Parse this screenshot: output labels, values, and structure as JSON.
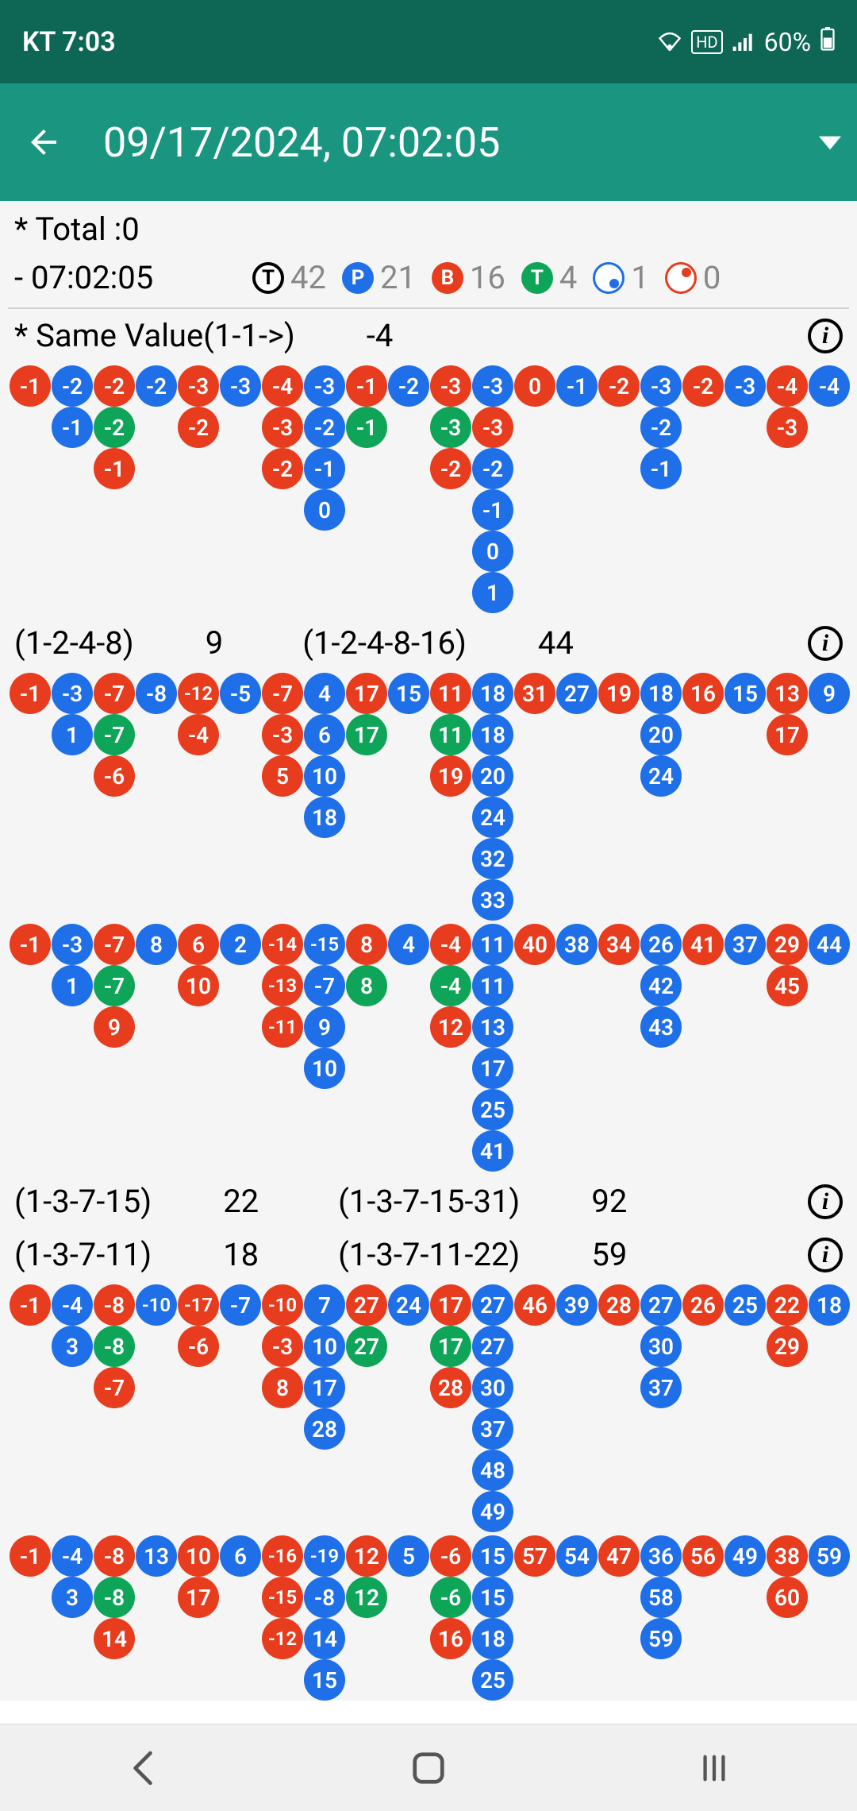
{
  "status_bar": {
    "carrier": "KT",
    "time": "7:03",
    "battery": "60%"
  },
  "app_bar": {
    "title": "09/17/2024, 07:02:05"
  },
  "total": {
    "label": "* Total : ",
    "value": "0"
  },
  "stats": {
    "time": " - 07:02:05",
    "T": "42",
    "P": "21",
    "B": "16",
    "Tg": "4",
    "ring_b": "1",
    "ring_r": "0"
  },
  "colors": {
    "red": "#e83c1e",
    "blue": "#1e6fe8",
    "green": "#0fa558",
    "teal": "#1a9680",
    "teal_dark": "#0e6655"
  },
  "sections": [
    {
      "id": "s1",
      "header": {
        "items": [
          [
            "* Same Value(1-1->)",
            "-4"
          ]
        ],
        "info": true
      },
      "rows": [
        [
          [
            "-1",
            "r"
          ],
          [
            "-2",
            "b"
          ],
          [
            "-2",
            "r"
          ],
          [
            "-2",
            "b"
          ],
          [
            "-3",
            "r"
          ],
          [
            "-3",
            "b"
          ],
          [
            "-4",
            "r"
          ],
          [
            "-3",
            "b"
          ],
          [
            "-1",
            "r"
          ],
          [
            "-2",
            "b"
          ],
          [
            "-3",
            "r"
          ],
          [
            "-3",
            "b"
          ],
          [
            "0",
            "r"
          ],
          [
            "-1",
            "b"
          ],
          [
            "-2",
            "r"
          ],
          [
            "-3",
            "b"
          ],
          [
            "-2",
            "r"
          ],
          [
            "-3",
            "b"
          ],
          [
            "-4",
            "r"
          ],
          [
            "-4",
            "b"
          ]
        ],
        [
          null,
          [
            "-1",
            "b"
          ],
          [
            "-2",
            "g"
          ],
          null,
          [
            "-2",
            "r"
          ],
          null,
          [
            "-3",
            "r"
          ],
          [
            "-2",
            "b"
          ],
          [
            "-1",
            "g"
          ],
          null,
          [
            "-3",
            "g"
          ],
          [
            "-3",
            "r"
          ],
          null,
          null,
          null,
          [
            "-2",
            "b"
          ],
          null,
          null,
          [
            "-3",
            "r"
          ],
          null
        ],
        [
          null,
          null,
          [
            "-1",
            "r"
          ],
          null,
          null,
          null,
          [
            "-2",
            "r"
          ],
          [
            "-1",
            "b"
          ],
          null,
          null,
          [
            "-2",
            "r"
          ],
          [
            "-2",
            "b"
          ],
          null,
          null,
          null,
          [
            "-1",
            "b"
          ],
          null,
          null,
          null,
          null
        ],
        [
          null,
          null,
          null,
          null,
          null,
          null,
          null,
          [
            "0",
            "b"
          ],
          null,
          null,
          null,
          [
            "-1",
            "b"
          ],
          null,
          null,
          null,
          null,
          null,
          null,
          null,
          null
        ],
        [
          null,
          null,
          null,
          null,
          null,
          null,
          null,
          null,
          null,
          null,
          null,
          [
            "0",
            "b"
          ],
          null,
          null,
          null,
          null,
          null,
          null,
          null,
          null
        ],
        [
          null,
          null,
          null,
          null,
          null,
          null,
          null,
          null,
          null,
          null,
          null,
          [
            "1",
            "b"
          ],
          null,
          null,
          null,
          null,
          null,
          null,
          null,
          null
        ]
      ]
    },
    {
      "id": "s2",
      "header": {
        "items": [
          [
            "(1-2-4-8)",
            "9"
          ],
          [
            "(1-2-4-8-16)",
            "44"
          ]
        ],
        "info": true
      },
      "rows": [
        [
          [
            "-1",
            "r"
          ],
          [
            "-3",
            "b"
          ],
          [
            "-7",
            "r"
          ],
          [
            "-8",
            "b"
          ],
          [
            "-12",
            "r"
          ],
          [
            "-5",
            "b"
          ],
          [
            "-7",
            "r"
          ],
          [
            "4",
            "b"
          ],
          [
            "17",
            "r"
          ],
          [
            "15",
            "b"
          ],
          [
            "11",
            "r"
          ],
          [
            "18",
            "b"
          ],
          [
            "31",
            "r"
          ],
          [
            "27",
            "b"
          ],
          [
            "19",
            "r"
          ],
          [
            "18",
            "b"
          ],
          [
            "16",
            "r"
          ],
          [
            "15",
            "b"
          ],
          [
            "13",
            "r"
          ],
          [
            "9",
            "b"
          ]
        ],
        [
          null,
          [
            "1",
            "b"
          ],
          [
            "-7",
            "g"
          ],
          null,
          [
            "-4",
            "r"
          ],
          null,
          [
            "-3",
            "r"
          ],
          [
            "6",
            "b"
          ],
          [
            "17",
            "g"
          ],
          null,
          [
            "11",
            "g"
          ],
          [
            "18",
            "b"
          ],
          null,
          null,
          null,
          [
            "20",
            "b"
          ],
          null,
          null,
          [
            "17",
            "r"
          ],
          null
        ],
        [
          null,
          null,
          [
            "-6",
            "r"
          ],
          null,
          null,
          null,
          [
            "5",
            "r"
          ],
          [
            "10",
            "b"
          ],
          null,
          null,
          [
            "19",
            "r"
          ],
          [
            "20",
            "b"
          ],
          null,
          null,
          null,
          [
            "24",
            "b"
          ],
          null,
          null,
          null,
          null
        ],
        [
          null,
          null,
          null,
          null,
          null,
          null,
          null,
          [
            "18",
            "b"
          ],
          null,
          null,
          null,
          [
            "24",
            "b"
          ],
          null,
          null,
          null,
          null,
          null,
          null,
          null,
          null
        ],
        [
          null,
          null,
          null,
          null,
          null,
          null,
          null,
          null,
          null,
          null,
          null,
          [
            "32",
            "b"
          ],
          null,
          null,
          null,
          null,
          null,
          null,
          null,
          null
        ],
        [
          null,
          null,
          null,
          null,
          null,
          null,
          null,
          null,
          null,
          null,
          null,
          [
            "33",
            "b"
          ],
          null,
          null,
          null,
          null,
          null,
          null,
          null,
          null
        ]
      ]
    },
    {
      "id": "s3",
      "header": null,
      "rows": [
        [
          [
            "-1",
            "r"
          ],
          [
            "-3",
            "b"
          ],
          [
            "-7",
            "r"
          ],
          [
            "8",
            "b"
          ],
          [
            "6",
            "r"
          ],
          [
            "2",
            "b"
          ],
          [
            "-14",
            "r"
          ],
          [
            "-15",
            "b"
          ],
          [
            "8",
            "r"
          ],
          [
            "4",
            "b"
          ],
          [
            "-4",
            "r"
          ],
          [
            "11",
            "b"
          ],
          [
            "40",
            "r"
          ],
          [
            "38",
            "b"
          ],
          [
            "34",
            "r"
          ],
          [
            "26",
            "b"
          ],
          [
            "41",
            "r"
          ],
          [
            "37",
            "b"
          ],
          [
            "29",
            "r"
          ],
          [
            "44",
            "b"
          ]
        ],
        [
          null,
          [
            "1",
            "b"
          ],
          [
            "-7",
            "g"
          ],
          null,
          [
            "10",
            "r"
          ],
          null,
          [
            "-13",
            "r"
          ],
          [
            "-7",
            "b"
          ],
          [
            "8",
            "g"
          ],
          null,
          [
            "-4",
            "g"
          ],
          [
            "11",
            "b"
          ],
          null,
          null,
          null,
          [
            "42",
            "b"
          ],
          null,
          null,
          [
            "45",
            "r"
          ],
          null
        ],
        [
          null,
          null,
          [
            "9",
            "r"
          ],
          null,
          null,
          null,
          [
            "-11",
            "r"
          ],
          [
            "9",
            "b"
          ],
          null,
          null,
          [
            "12",
            "r"
          ],
          [
            "13",
            "b"
          ],
          null,
          null,
          null,
          [
            "43",
            "b"
          ],
          null,
          null,
          null,
          null
        ],
        [
          null,
          null,
          null,
          null,
          null,
          null,
          null,
          [
            "10",
            "b"
          ],
          null,
          null,
          null,
          [
            "17",
            "b"
          ],
          null,
          null,
          null,
          null,
          null,
          null,
          null,
          null
        ],
        [
          null,
          null,
          null,
          null,
          null,
          null,
          null,
          null,
          null,
          null,
          null,
          [
            "25",
            "b"
          ],
          null,
          null,
          null,
          null,
          null,
          null,
          null,
          null
        ],
        [
          null,
          null,
          null,
          null,
          null,
          null,
          null,
          null,
          null,
          null,
          null,
          [
            "41",
            "b"
          ],
          null,
          null,
          null,
          null,
          null,
          null,
          null,
          null
        ]
      ]
    },
    {
      "id": "s4",
      "header": {
        "items": [
          [
            "(1-3-7-15)",
            "22"
          ],
          [
            "(1-3-7-15-31)",
            "92"
          ]
        ],
        "info": true,
        "second_line": {
          "items": [
            [
              "(1-3-7-11)",
              "18"
            ],
            [
              "(1-3-7-11-22)",
              "59"
            ]
          ],
          "info": true
        }
      },
      "rows": [
        [
          [
            "-1",
            "r"
          ],
          [
            "-4",
            "b"
          ],
          [
            "-8",
            "r"
          ],
          [
            "-10",
            "b"
          ],
          [
            "-17",
            "r"
          ],
          [
            "-7",
            "b"
          ],
          [
            "-10",
            "r"
          ],
          [
            "7",
            "b"
          ],
          [
            "27",
            "r"
          ],
          [
            "24",
            "b"
          ],
          [
            "17",
            "r"
          ],
          [
            "27",
            "b"
          ],
          [
            "46",
            "r"
          ],
          [
            "39",
            "b"
          ],
          [
            "28",
            "r"
          ],
          [
            "27",
            "b"
          ],
          [
            "26",
            "r"
          ],
          [
            "25",
            "b"
          ],
          [
            "22",
            "r"
          ],
          [
            "18",
            "b"
          ]
        ],
        [
          null,
          [
            "3",
            "b"
          ],
          [
            "-8",
            "g"
          ],
          null,
          [
            "-6",
            "r"
          ],
          null,
          [
            "-3",
            "r"
          ],
          [
            "10",
            "b"
          ],
          [
            "27",
            "g"
          ],
          null,
          [
            "17",
            "g"
          ],
          [
            "27",
            "b"
          ],
          null,
          null,
          null,
          [
            "30",
            "b"
          ],
          null,
          null,
          [
            "29",
            "r"
          ],
          null
        ],
        [
          null,
          null,
          [
            "-7",
            "r"
          ],
          null,
          null,
          null,
          [
            "8",
            "r"
          ],
          [
            "17",
            "b"
          ],
          null,
          null,
          [
            "28",
            "r"
          ],
          [
            "30",
            "b"
          ],
          null,
          null,
          null,
          [
            "37",
            "b"
          ],
          null,
          null,
          null,
          null
        ],
        [
          null,
          null,
          null,
          null,
          null,
          null,
          null,
          [
            "28",
            "b"
          ],
          null,
          null,
          null,
          [
            "37",
            "b"
          ],
          null,
          null,
          null,
          null,
          null,
          null,
          null,
          null
        ],
        [
          null,
          null,
          null,
          null,
          null,
          null,
          null,
          null,
          null,
          null,
          null,
          [
            "48",
            "b"
          ],
          null,
          null,
          null,
          null,
          null,
          null,
          null,
          null
        ],
        [
          null,
          null,
          null,
          null,
          null,
          null,
          null,
          null,
          null,
          null,
          null,
          [
            "49",
            "b"
          ],
          null,
          null,
          null,
          null,
          null,
          null,
          null,
          null
        ]
      ]
    },
    {
      "id": "s5",
      "header": null,
      "rows": [
        [
          [
            "-1",
            "r"
          ],
          [
            "-4",
            "b"
          ],
          [
            "-8",
            "r"
          ],
          [
            "13",
            "b"
          ],
          [
            "10",
            "r"
          ],
          [
            "6",
            "b"
          ],
          [
            "-16",
            "r"
          ],
          [
            "-19",
            "b"
          ],
          [
            "12",
            "r"
          ],
          [
            "5",
            "b"
          ],
          [
            "-6",
            "r"
          ],
          [
            "15",
            "b"
          ],
          [
            "57",
            "r"
          ],
          [
            "54",
            "b"
          ],
          [
            "47",
            "r"
          ],
          [
            "36",
            "b"
          ],
          [
            "56",
            "r"
          ],
          [
            "49",
            "b"
          ],
          [
            "38",
            "r"
          ],
          [
            "59",
            "b"
          ]
        ],
        [
          null,
          [
            "3",
            "b"
          ],
          [
            "-8",
            "g"
          ],
          null,
          [
            "17",
            "r"
          ],
          null,
          [
            "-15",
            "r"
          ],
          [
            "-8",
            "b"
          ],
          [
            "12",
            "g"
          ],
          null,
          [
            "-6",
            "g"
          ],
          [
            "15",
            "b"
          ],
          null,
          null,
          null,
          [
            "58",
            "b"
          ],
          null,
          null,
          [
            "60",
            "r"
          ],
          null
        ],
        [
          null,
          null,
          [
            "14",
            "r"
          ],
          null,
          null,
          null,
          [
            "-12",
            "r"
          ],
          [
            "14",
            "b"
          ],
          null,
          null,
          [
            "16",
            "r"
          ],
          [
            "18",
            "b"
          ],
          null,
          null,
          null,
          [
            "59",
            "b"
          ],
          null,
          null,
          null,
          null
        ],
        [
          null,
          null,
          null,
          null,
          null,
          null,
          null,
          [
            "15",
            "b"
          ],
          null,
          null,
          null,
          [
            "25",
            "b"
          ],
          null,
          null,
          null,
          null,
          null,
          null,
          null,
          null
        ]
      ]
    }
  ]
}
